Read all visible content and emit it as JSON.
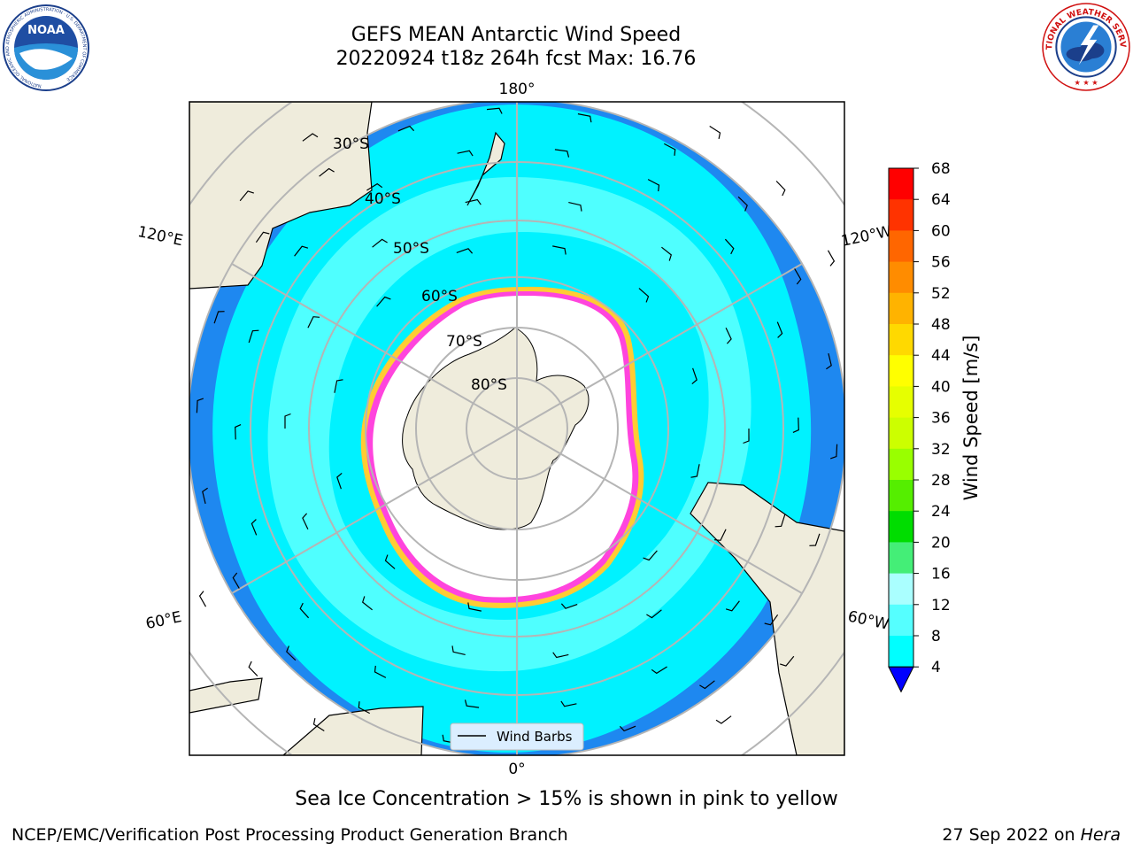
{
  "header": {
    "title": "GEFS MEAN Antarctic Wind Speed",
    "subtitle": "20220924 t18z 264h fcst   Max: 16.76"
  },
  "logos": {
    "left": "NOAA",
    "left_ring": "NATIONAL OCEANIC AND ATMOSPHERIC ADMINISTRATION · U.S. DEPARTMENT OF COMMERCE",
    "right": "NATIONAL WEATHER SERVICE"
  },
  "map": {
    "projection": "south-polar-stereographic",
    "meridian_labels": {
      "top": "180°",
      "bottom": "0°",
      "upper_left": "120°E",
      "upper_right": "120°W",
      "lower_left": "60°E",
      "lower_right": "60°W"
    },
    "parallel_labels": [
      "30°S",
      "40°S",
      "50°S",
      "60°S",
      "70°S",
      "80°S"
    ],
    "legend_label": "Wind Barbs"
  },
  "colorbar": {
    "label": "Wind Speed [m/s]",
    "ticks": [
      "68",
      "64",
      "60",
      "56",
      "52",
      "48",
      "44",
      "40",
      "36",
      "32",
      "28",
      "24",
      "20",
      "16",
      "12",
      "8",
      "4"
    ],
    "colors": [
      "#ff0000",
      "#ff3300",
      "#ff6600",
      "#ff8c00",
      "#ffb300",
      "#ffd900",
      "#ffff00",
      "#e6ff00",
      "#ccff00",
      "#99ff00",
      "#55ee00",
      "#00dd00",
      "#44ee77",
      "#aaffff",
      "#55ffff",
      "#00ffff",
      "#0077ff"
    ],
    "extend_color": "#0000ff"
  },
  "colors": {
    "ocean_low": "#1e88f0",
    "ocean_mid": "#00f2ff",
    "ocean_high": "#4fffff",
    "land": "#efecdc",
    "sea_ice_edge": "#ff44dd",
    "sea_ice_fringe": "#ffcc33"
  },
  "footer": {
    "caption": "Sea Ice Concentration > 15% is shown in pink to yellow",
    "credit_left": "NCEP/EMC/Verification Post Processing Product Generation Branch",
    "credit_date": "27 Sep 2022 on",
    "credit_machine": "Hera"
  }
}
